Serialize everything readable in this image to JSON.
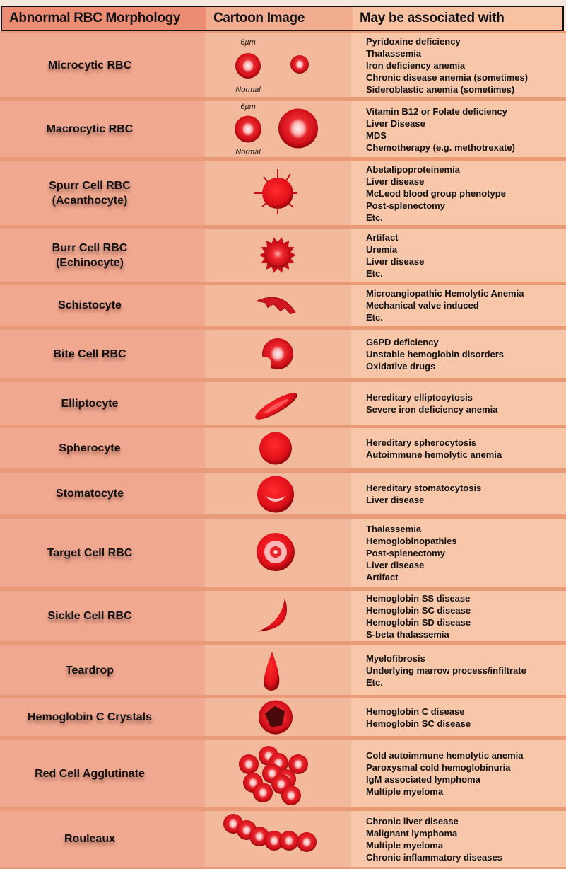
{
  "header": {
    "col1": "Abnormal RBC Morphology",
    "col2": "Cartoon Image",
    "col3": "May be associated with"
  },
  "colors": {
    "cell_red": "#e0141c",
    "cell_dark": "#9a0a0e",
    "cell_pale": "#ffd6d6",
    "header_bg": "#ec8c72",
    "col1_bg": "#f0a890",
    "col2_bg": "#f3b99c",
    "col3_bg": "#f8c7a9"
  },
  "rows": [
    {
      "name": [
        "Microcytic RBC"
      ],
      "cartoon": "microcytic-icon",
      "size_label": "6µm",
      "normal_label": "Normal",
      "assoc": [
        "Pyridoxine deficiency",
        "Thalassemia",
        "Iron deficiency anemia",
        "Chronic disease anemia (sometimes)",
        "Sideroblastic anemia (sometimes)"
      ]
    },
    {
      "name": [
        "Macrocytic RBC"
      ],
      "cartoon": "macrocytic-icon",
      "size_label": "6µm",
      "normal_label": "Normal",
      "assoc": [
        "Vitamin B12 or Folate deficiency",
        "Liver Disease",
        "MDS",
        "Chemotherapy (e.g. methotrexate)"
      ]
    },
    {
      "name": [
        "Spurr Cell RBC",
        "(Acanthocyte)"
      ],
      "cartoon": "spurr-cell-icon",
      "assoc": [
        "Abetalipoproteinemia",
        "Liver disease",
        "McLeod  blood group phenotype",
        "Post-splenectomy",
        "Etc."
      ]
    },
    {
      "name": [
        "Burr Cell RBC",
        "(Echinocyte)"
      ],
      "cartoon": "burr-cell-icon",
      "assoc": [
        "Artifact",
        "Uremia",
        "Liver disease",
        "Etc."
      ]
    },
    {
      "name": [
        "Schistocyte"
      ],
      "cartoon": "schistocyte-icon",
      "assoc": [
        "Microangiopathic Hemolytic Anemia",
        "Mechanical valve induced",
        "Etc."
      ]
    },
    {
      "name": [
        "Bite Cell RBC"
      ],
      "cartoon": "bite-cell-icon",
      "assoc": [
        "G6PD deficiency",
        "Unstable hemoglobin disorders",
        "Oxidative drugs"
      ]
    },
    {
      "name": [
        "Elliptocyte"
      ],
      "cartoon": "elliptocyte-icon",
      "assoc": [
        "Hereditary elliptocytosis",
        "Severe iron deficiency anemia"
      ]
    },
    {
      "name": [
        "Spherocyte"
      ],
      "cartoon": "spherocyte-icon",
      "assoc": [
        "Hereditary spherocytosis",
        "Autoimmune hemolytic anemia"
      ]
    },
    {
      "name": [
        "Stomatocyte"
      ],
      "cartoon": "stomatocyte-icon",
      "assoc": [
        "Hereditary stomatocytosis",
        "Liver disease"
      ]
    },
    {
      "name": [
        "Target Cell RBC"
      ],
      "cartoon": "target-cell-icon",
      "assoc": [
        "Thalassemia",
        "Hemoglobinopathies",
        "Post-splenectomy",
        "Liver disease",
        "Artifact"
      ]
    },
    {
      "name": [
        "Sickle Cell RBC"
      ],
      "cartoon": "sickle-cell-icon",
      "assoc": [
        "Hemoglobin SS disease",
        "Hemoglobin SC disease",
        "Hemoglobin SD disease",
        "S-beta thalassemia"
      ]
    },
    {
      "name": [
        "Teardrop"
      ],
      "cartoon": "teardrop-icon",
      "assoc": [
        "Myelofibrosis",
        "Underlying marrow process/infiltrate",
        "Etc."
      ]
    },
    {
      "name": [
        "Hemoglobin C Crystals"
      ],
      "cartoon": "hemoglobin-c-crystal-icon",
      "assoc": [
        "Hemoglobin C disease",
        "Hemoglobin SC disease"
      ]
    },
    {
      "name": [
        "Red Cell Agglutinate"
      ],
      "cartoon": "agglutinate-icon",
      "assoc": [
        "Cold autoimmune hemolytic anemia",
        "Paroxysmal cold hemoglobinuria",
        "IgM associated lymphoma",
        "Multiple myeloma"
      ]
    },
    {
      "name": [
        "Rouleaux"
      ],
      "cartoon": "rouleaux-icon",
      "assoc": [
        "Chronic liver disease",
        "Malignant lymphoma",
        "Multiple myeloma",
        "Chronic inflammatory diseases"
      ]
    }
  ]
}
